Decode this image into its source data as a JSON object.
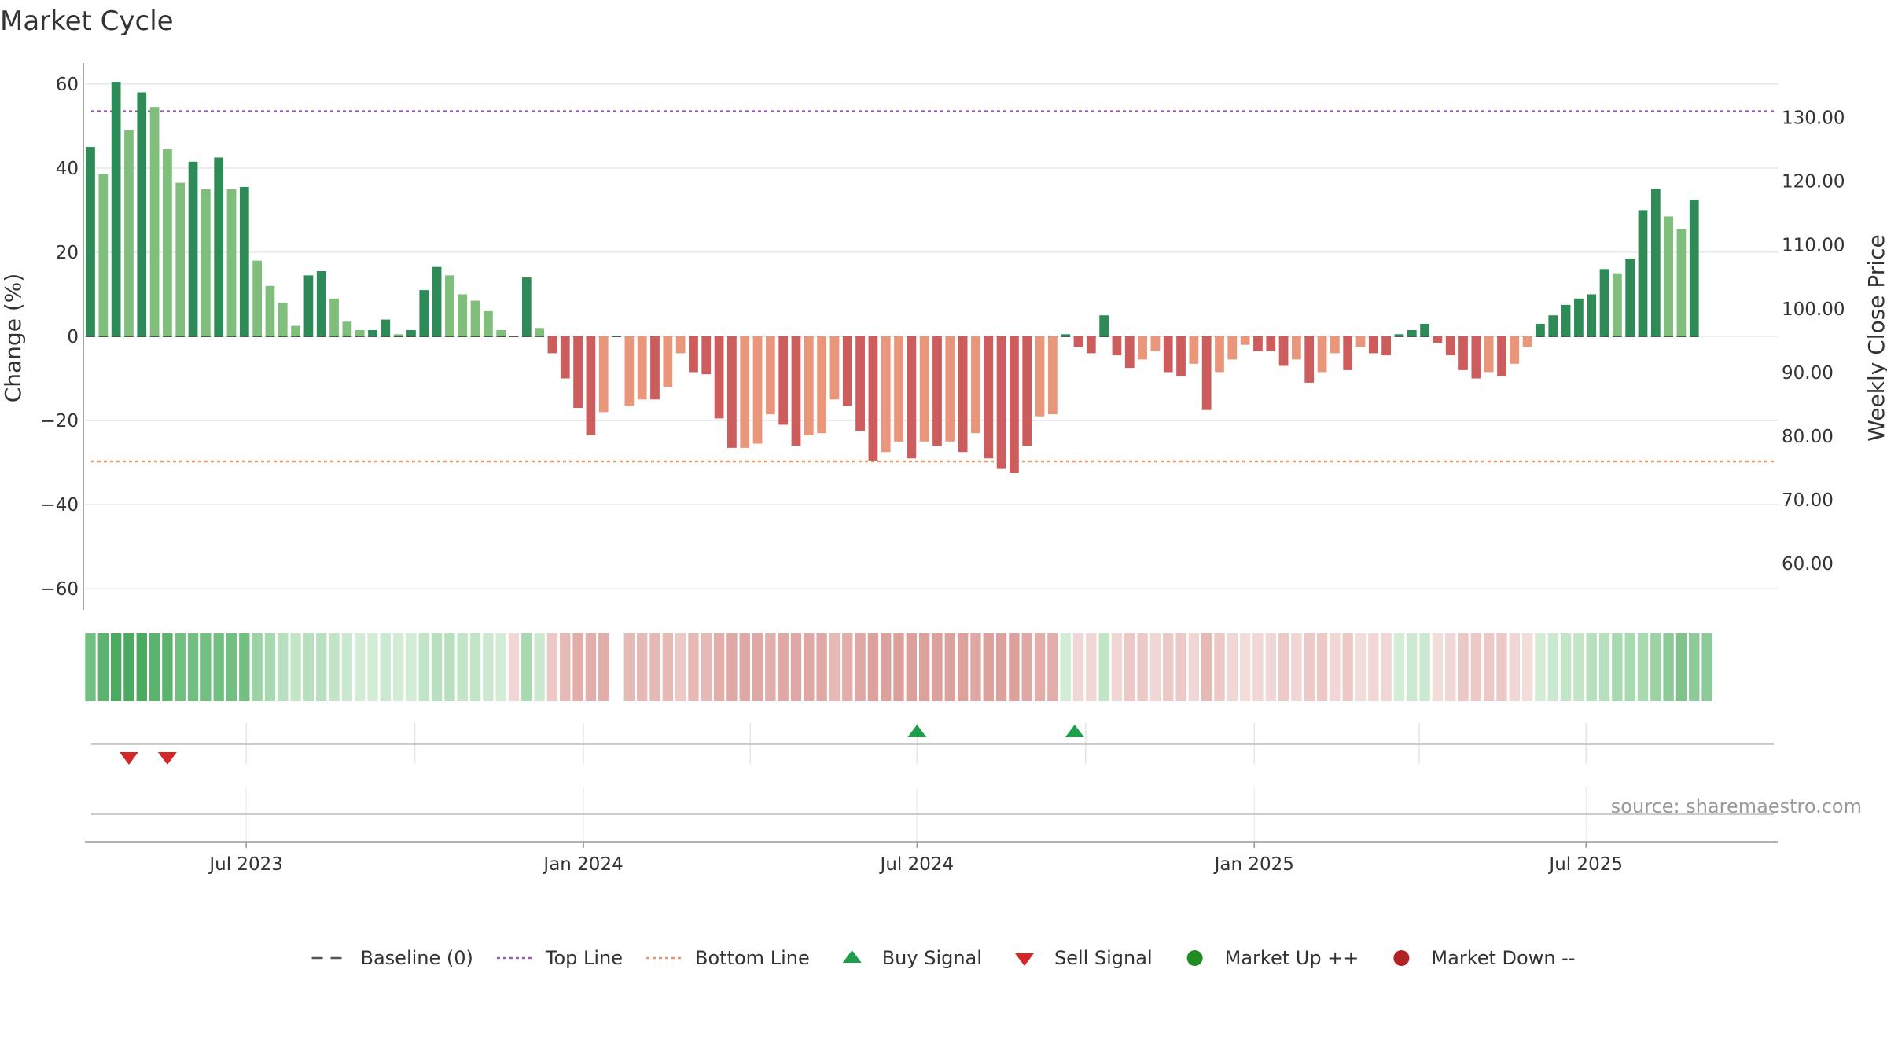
{
  "chart_data": {
    "type": "bar",
    "title": "Market Cycle",
    "ylabel": "Change (%)",
    "y2label": "Weekly Close Price",
    "ylim": [
      -65,
      65
    ],
    "y_ticks": [
      60,
      40,
      20,
      0,
      -20,
      -40,
      -60
    ],
    "y_tick_labels": [
      "60",
      "40",
      "20",
      "0",
      "−20",
      "−40",
      "−60"
    ],
    "y2lim": [
      52.7,
      138.6
    ],
    "y2_ticks": [
      130,
      120,
      110,
      100,
      90,
      80,
      70,
      60
    ],
    "y2_tick_labels": [
      "130.00",
      "120.00",
      "110.00",
      "100.00",
      "90.00",
      "80.00",
      "70.00",
      "60.00"
    ],
    "x_start": "2023-04-04",
    "x_end": "2025-10-14",
    "x_ticks": [
      {
        "date": "2023-07-01",
        "label": "Jul 2023"
      },
      {
        "date": "2024-01-01",
        "label": "Jan 2024"
      },
      {
        "date": "2024-07-01",
        "label": "Jul 2024"
      },
      {
        "date": "2025-01-01",
        "label": "Jan 2025"
      },
      {
        "date": "2025-07-01",
        "label": "Jul 2025"
      }
    ],
    "minor_x_ticks": [
      "2023-10-01",
      "2024-04-01",
      "2024-10-01",
      "2025-04-01"
    ],
    "first_week": "2023-04-07",
    "values": [
      45,
      38.5,
      60.5,
      49,
      58,
      54.5,
      44.5,
      36.5,
      41.5,
      35,
      42.5,
      35,
      35.5,
      18,
      12,
      8,
      2.5,
      14.5,
      15.5,
      9,
      3.5,
      1.5,
      1.5,
      4,
      0.5,
      1.5,
      11,
      16.5,
      14.5,
      10,
      8.5,
      6,
      1.5,
      null,
      14,
      2,
      -4,
      -10,
      -17,
      -23.5,
      -18,
      null,
      -16.5,
      -15,
      -15,
      -12,
      -4,
      -8.5,
      -9,
      -19.5,
      -26.5,
      -26.5,
      -25.5,
      -18.5,
      -21,
      -26,
      -23.5,
      -23,
      -15,
      -16.5,
      -22.5,
      -29.5,
      -27.5,
      -25,
      -29,
      -25,
      -26,
      -25,
      -27.5,
      -23,
      -29,
      -31.5,
      -32.5,
      -26,
      -19,
      -18.5,
      0.5,
      -2.5,
      -4,
      5,
      -4.5,
      -7.5,
      -5.5,
      -3.5,
      -8.5,
      -9.5,
      -6.5,
      -17.5,
      -8.5,
      -5.5,
      -2,
      -3.5,
      -3.5,
      -7,
      -5.5,
      -11,
      -8.5,
      -4,
      -8,
      -2.5,
      -4,
      -4.5,
      0.5,
      1.5,
      3,
      -1.5,
      -4.5,
      -8,
      -10,
      -8.5,
      -9.5,
      -6.5,
      -2.5,
      3,
      5,
      7.5,
      9,
      10,
      16,
      15,
      18.5,
      30,
      35,
      28.5,
      25.5,
      32.5
    ],
    "bar_colors": [
      "#2e8b57",
      "#7fbf7b",
      "#2e8b57",
      "#7fbf7b",
      "#2e8b57",
      "#7fbf7b",
      "#7fbf7b",
      "#7fbf7b",
      "#2e8b57",
      "#7fbf7b",
      "#2e8b57",
      "#7fbf7b",
      "#2e8b57",
      "#7fbf7b",
      "#7fbf7b",
      "#7fbf7b",
      "#7fbf7b",
      "#2e8b57",
      "#2e8b57",
      "#7fbf7b",
      "#7fbf7b",
      "#7fbf7b",
      "#2e8b57",
      "#2e8b57",
      "#7fbf7b",
      "#2e8b57",
      "#2e8b57",
      "#2e8b57",
      "#7fbf7b",
      "#7fbf7b",
      "#7fbf7b",
      "#7fbf7b",
      "#7fbf7b",
      "#ffffff",
      "#2e8b57",
      "#7fbf7b",
      "#cd5c5c",
      "#cd5c5c",
      "#cd5c5c",
      "#cd5c5c",
      "#e9967a",
      "#ffffff",
      "#e9967a",
      "#e9967a",
      "#cd5c5c",
      "#e9967a",
      "#e9967a",
      "#cd5c5c",
      "#cd5c5c",
      "#cd5c5c",
      "#cd5c5c",
      "#e9967a",
      "#e9967a",
      "#e9967a",
      "#cd5c5c",
      "#cd5c5c",
      "#e9967a",
      "#e9967a",
      "#e9967a",
      "#cd5c5c",
      "#cd5c5c",
      "#cd5c5c",
      "#e9967a",
      "#e9967a",
      "#cd5c5c",
      "#e9967a",
      "#cd5c5c",
      "#e9967a",
      "#cd5c5c",
      "#e9967a",
      "#cd5c5c",
      "#cd5c5c",
      "#cd5c5c",
      "#cd5c5c",
      "#e9967a",
      "#e9967a",
      "#2e8b57",
      "#cd5c5c",
      "#cd5c5c",
      "#2e8b57",
      "#cd5c5c",
      "#cd5c5c",
      "#e9967a",
      "#e9967a",
      "#cd5c5c",
      "#cd5c5c",
      "#e9967a",
      "#cd5c5c",
      "#e9967a",
      "#e9967a",
      "#e9967a",
      "#cd5c5c",
      "#cd5c5c",
      "#cd5c5c",
      "#e9967a",
      "#cd5c5c",
      "#e9967a",
      "#e9967a",
      "#cd5c5c",
      "#e9967a",
      "#cd5c5c",
      "#cd5c5c",
      "#2e8b57",
      "#2e8b57",
      "#2e8b57",
      "#cd5c5c",
      "#cd5c5c",
      "#cd5c5c",
      "#cd5c5c",
      "#e9967a",
      "#cd5c5c",
      "#e9967a",
      "#e9967a",
      "#2e8b57",
      "#2e8b57",
      "#2e8b57",
      "#2e8b57",
      "#2e8b57",
      "#2e8b57",
      "#7fbf7b",
      "#2e8b57",
      "#2e8b57",
      "#2e8b57",
      "#7fbf7b",
      "#7fbf7b",
      "#2e8b57"
    ],
    "heat_colors": [
      "#72bf82",
      "#5cb36e",
      "#4aaa5f",
      "#4aaa5f",
      "#4aaa5f",
      "#5cb36e",
      "#5cb36e",
      "#72bf82",
      "#72bf82",
      "#72bf82",
      "#72bf82",
      "#72bf82",
      "#72bf82",
      "#9bd3a4",
      "#a8d9b0",
      "#b8e0bf",
      "#c2e5c8",
      "#b8e0bf",
      "#b8e0bf",
      "#c2e5c8",
      "#cbe9d0",
      "#d2ecd6",
      "#d2ecd6",
      "#cbe9d0",
      "#d2ecd6",
      "#d2ecd6",
      "#c2e5c8",
      "#b8e0bf",
      "#b8e0bf",
      "#c2e5c8",
      "#c2e5c8",
      "#cbe9d0",
      "#d2ecd6",
      "#f0d6d4",
      "#a8d9b0",
      "#cbe9d0",
      "#ecc9c6",
      "#e6b9b5",
      "#e3aeaa",
      "#e3aeaa",
      "#e3aeaa",
      "#ffffff",
      "#e6b9b5",
      "#e6b9b5",
      "#e6b9b5",
      "#e6b9b5",
      "#ecc9c6",
      "#e6b9b5",
      "#e6b9b5",
      "#e3aeaa",
      "#e0a8a4",
      "#e0a8a4",
      "#e0a8a4",
      "#e3aeaa",
      "#e0a8a4",
      "#e0a8a4",
      "#e0a8a4",
      "#e0a8a4",
      "#e6b9b5",
      "#e3aeaa",
      "#e0a8a4",
      "#dca19d",
      "#dca19d",
      "#dca19d",
      "#dca19d",
      "#dca19d",
      "#dca19d",
      "#dca19d",
      "#dca19d",
      "#e0a8a4",
      "#dca19d",
      "#dca19d",
      "#dca19d",
      "#e0a8a4",
      "#e3aeaa",
      "#e3aeaa",
      "#d2ecd6",
      "#f0d6d4",
      "#f0d6d4",
      "#c2e5c8",
      "#f0d6d4",
      "#ecc9c6",
      "#ecc9c6",
      "#f0d6d4",
      "#ecc9c6",
      "#ecc9c6",
      "#f0d6d4",
      "#e6b9b5",
      "#ecc9c6",
      "#f0d6d4",
      "#f3dddb",
      "#f0d6d4",
      "#f0d6d4",
      "#ecc9c6",
      "#f0d6d4",
      "#ecc9c6",
      "#ecc9c6",
      "#f0d6d4",
      "#ecc9c6",
      "#f3dddb",
      "#f0d6d4",
      "#f0d6d4",
      "#d2ecd6",
      "#cbe9d0",
      "#cbe9d0",
      "#f3dddb",
      "#f0d6d4",
      "#ecc9c6",
      "#ecc9c6",
      "#ecc9c6",
      "#ecc9c6",
      "#f0d6d4",
      "#f3dddb",
      "#d2ecd6",
      "#cbe9d0",
      "#c2e5c8",
      "#c2e5c8",
      "#b8e0bf",
      "#b8e0bf",
      "#a8d9b0",
      "#a8d9b0",
      "#a8d9b0",
      "#9bd3a4",
      "#8ccb97",
      "#7fc38b",
      "#8ccb97",
      "#8ccb97"
    ],
    "top_line": 53.5,
    "bottom_line": -29.7,
    "buy_signals": [
      "2024-07-01",
      "2024-09-25"
    ],
    "sell_signals": [
      "2023-04-28",
      "2023-05-19"
    ],
    "market_up": [],
    "market_down": [],
    "legend": [
      {
        "label": "Baseline (0)",
        "marker": "dash",
        "color": "#555555"
      },
      {
        "label": "Top Line",
        "marker": "dotted",
        "color": "#9b59b6"
      },
      {
        "label": "Bottom Line",
        "marker": "dotted",
        "color": "#e59866"
      },
      {
        "label": "Buy Signal",
        "marker": "triangle-up",
        "color": "#1e9e4a"
      },
      {
        "label": "Sell Signal",
        "marker": "triangle-down",
        "color": "#d62728"
      },
      {
        "label": "Market Up ++",
        "marker": "circle",
        "color": "#228b22"
      },
      {
        "label": "Market Down --",
        "marker": "circle",
        "color": "#b22222"
      }
    ],
    "source": "source: sharemaestro.com",
    "grid": true,
    "legend_position": "bottom"
  }
}
